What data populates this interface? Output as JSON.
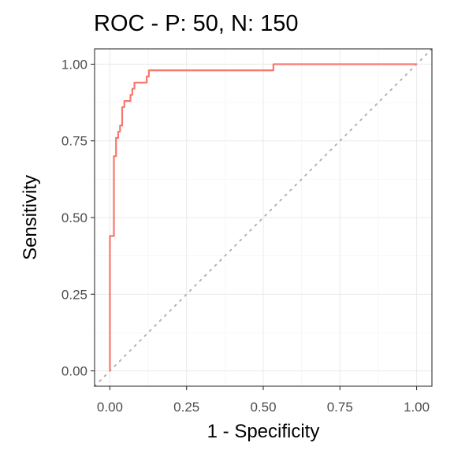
{
  "chart_data": {
    "type": "line",
    "title": "ROC - P: 50, N: 150",
    "xlabel": "1 - Specificity",
    "ylabel": "Sensitivity",
    "xlim": [
      -0.05,
      1.05
    ],
    "ylim": [
      -0.05,
      1.05
    ],
    "x_ticks": [
      0.0,
      0.25,
      0.5,
      0.75,
      1.0
    ],
    "y_ticks": [
      0.0,
      0.25,
      0.5,
      0.75,
      1.0
    ],
    "x_tick_labels": [
      "0.00",
      "0.25",
      "0.50",
      "0.75",
      "1.00"
    ],
    "y_tick_labels": [
      "0.00",
      "0.25",
      "0.50",
      "0.75",
      "1.00"
    ],
    "grid": true,
    "legend": "none",
    "reference_line": {
      "type": "diagonal",
      "style": "dotted",
      "color": "#b3b3b3"
    },
    "series": [
      {
        "color": "#f8766d",
        "points": [
          [
            0.0,
            0.0
          ],
          [
            0.0,
            0.44
          ],
          [
            0.013,
            0.44
          ],
          [
            0.013,
            0.7
          ],
          [
            0.02,
            0.7
          ],
          [
            0.02,
            0.76
          ],
          [
            0.027,
            0.76
          ],
          [
            0.027,
            0.78
          ],
          [
            0.033,
            0.78
          ],
          [
            0.033,
            0.8
          ],
          [
            0.04,
            0.8
          ],
          [
            0.04,
            0.86
          ],
          [
            0.047,
            0.86
          ],
          [
            0.047,
            0.88
          ],
          [
            0.067,
            0.88
          ],
          [
            0.067,
            0.9
          ],
          [
            0.073,
            0.9
          ],
          [
            0.073,
            0.92
          ],
          [
            0.08,
            0.92
          ],
          [
            0.08,
            0.94
          ],
          [
            0.12,
            0.94
          ],
          [
            0.12,
            0.96
          ],
          [
            0.127,
            0.96
          ],
          [
            0.127,
            0.98
          ],
          [
            0.533,
            0.98
          ],
          [
            0.533,
            1.0
          ],
          [
            1.0,
            1.0
          ]
        ]
      }
    ]
  }
}
